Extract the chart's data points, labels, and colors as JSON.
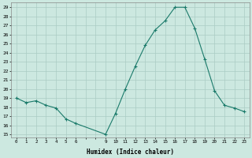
{
  "xlabel": "Humidex (Indice chaleur)",
  "ylabel": "",
  "x_values": [
    0,
    1,
    2,
    3,
    4,
    5,
    6,
    9,
    10,
    11,
    12,
    13,
    14,
    15,
    16,
    17,
    18,
    19,
    20,
    21,
    22,
    23
  ],
  "y_values": [
    19,
    18.5,
    18.7,
    18.2,
    17.9,
    16.7,
    16.2,
    15.0,
    17.3,
    20.0,
    22.5,
    24.8,
    26.5,
    27.5,
    29.0,
    29.0,
    26.7,
    23.3,
    19.8,
    18.2,
    17.9,
    17.5
  ],
  "y_min": 15,
  "y_max": 29,
  "y_tick_step": 1,
  "x_min": -0.5,
  "x_max": 23.5,
  "line_color": "#1a7a6a",
  "marker_color": "#1a7a6a",
  "bg_color": "#cce8e0",
  "grid_color": "#aaccc4",
  "font_family": "monospace"
}
